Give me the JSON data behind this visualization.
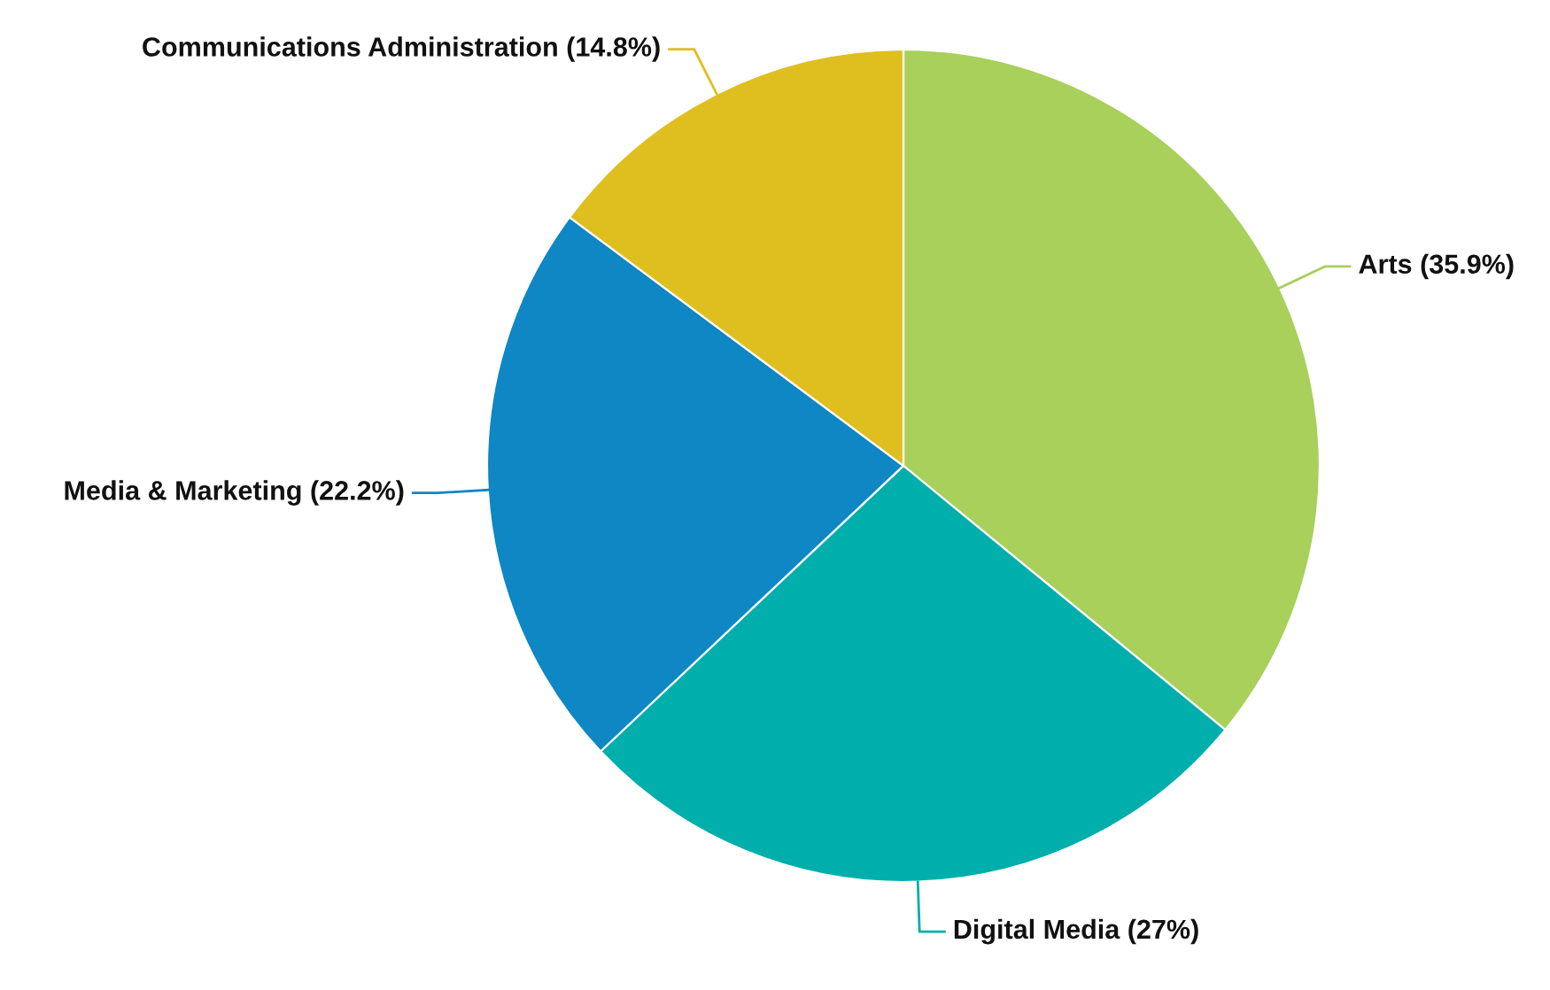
{
  "chart_data": {
    "type": "pie",
    "categories": [
      "Arts",
      "Digital Media",
      "Media & Marketing",
      "Communications Administration"
    ],
    "values": [
      35.9,
      27,
      22.2,
      14.8
    ],
    "colors": [
      "#a8d05a",
      "#00aeab",
      "#0e87c4",
      "#dfbf1f"
    ],
    "value_labels": [
      "(35.9%)",
      "(27%)",
      "(22.2%)",
      "(14.8%)"
    ],
    "legend": false
  }
}
